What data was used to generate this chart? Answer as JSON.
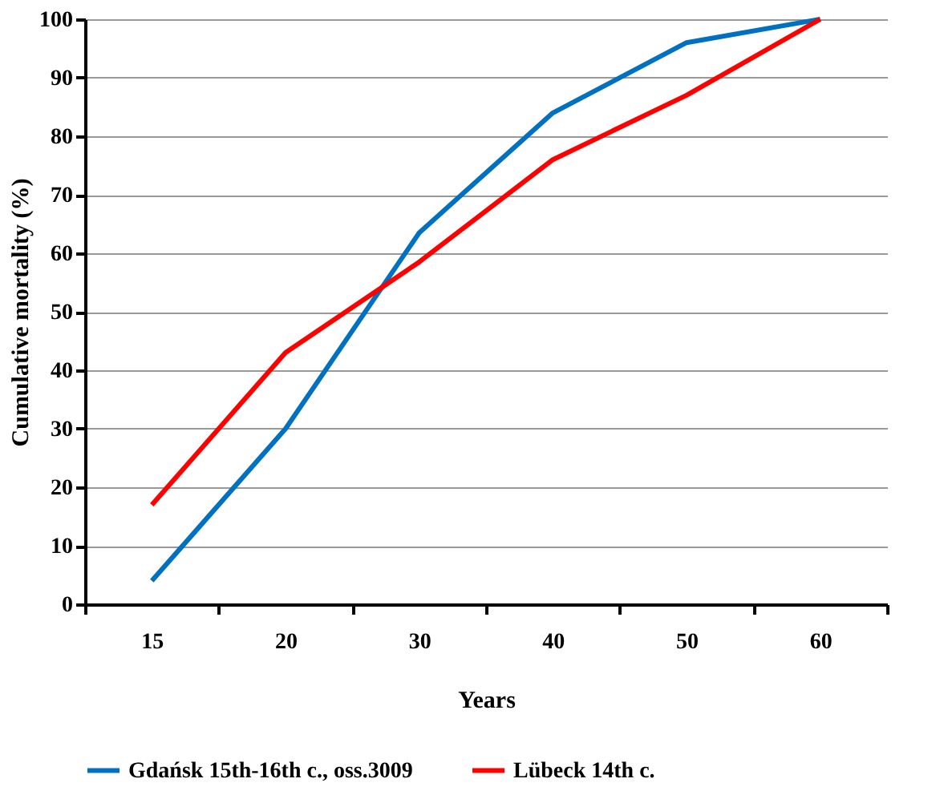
{
  "chart_data": {
    "type": "line",
    "xlabel": "Years",
    "ylabel": "Cumulative mortality (%)",
    "categories": [
      "15",
      "20",
      "30",
      "40",
      "50",
      "60"
    ],
    "series": [
      {
        "name": "Gdańsk 15th-16th c., oss.3009",
        "color": "#0070c0",
        "values": [
          4,
          30,
          63.5,
          84,
          96,
          100
        ]
      },
      {
        "name": "Lübeck 14th c.",
        "color": "#ff0000",
        "values": [
          17,
          43,
          58.5,
          76,
          87,
          100
        ]
      }
    ],
    "ylim": [
      0,
      100
    ],
    "yticks": [
      0,
      10,
      20,
      30,
      40,
      50,
      60,
      70,
      80,
      90,
      100
    ],
    "grid": "y",
    "legend": "bottom",
    "marker": "none",
    "line_style": "solid"
  }
}
